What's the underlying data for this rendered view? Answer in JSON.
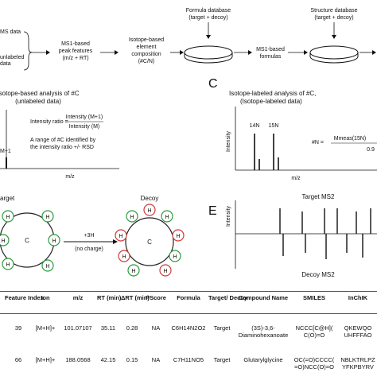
{
  "panelA": {
    "input_top": "MS data",
    "input_bottom": "unlabeled",
    "input_bottom2": "data",
    "step1": [
      "MS1-based",
      "peak features",
      "(m/z + RT)"
    ],
    "step2": [
      "Isotope-based",
      "element",
      "composition",
      "(#C/N)"
    ],
    "formula_db": [
      "Formula database",
      "(target + decoy)"
    ],
    "step3": [
      "MS1-based",
      "formulas"
    ],
    "structure_db": [
      "Structure database",
      "(target + decoy)"
    ]
  },
  "panelB": {
    "title": "Isotope-based analysis of #C",
    "subtitle": "(unlabeled data)",
    "ratio_lhs": "Intensity ratio =",
    "ratio_num": "Intensity (M+1)",
    "ratio_den": "Intensity (M)",
    "peak_label": "M+1",
    "note1": "A range of #C identified by",
    "note2": "the intensity ratio +/- RSD",
    "xlabel": "m/z"
  },
  "panelC": {
    "letter": "C",
    "title": "Isotope-labeled analysis of #C,",
    "subtitle": "(Isotope-labeled data)",
    "ylabel": "Intensity",
    "xlabel": "m/z",
    "peak1": "14N",
    "peak2": "15N",
    "formula_lhs": "#N =",
    "formula_num": "Mmeas(15N)",
    "formula_den": "0.9"
  },
  "panelD": {
    "target_label": "arget",
    "decoy_label": "Decoy",
    "arrow_top": "+3H",
    "arrow_bottom": "(no charge)",
    "center_atom": "C",
    "atom_H": "H"
  },
  "panelE": {
    "letter": "E",
    "target_label": "Target MS2",
    "decoy_label": "Decoy MS2",
    "ylabel": "Intensity"
  },
  "table": {
    "headers": [
      "Feature Index",
      "Ion",
      "m/z",
      "RT (min)",
      "ΔRT (min)",
      "PScore",
      "Formula",
      "Target/ Decoy",
      "Compound Name",
      "SMILES",
      "InChIK"
    ],
    "rows": [
      [
        "39",
        "[M+H]+",
        "101.07107",
        "35.11",
        "0.28",
        "NA",
        "C6H14N2O2",
        "Target",
        "(3S)-3,6- Diaminohexanoate",
        "NCCC[C@H]( C(O)=O",
        "QKEWQO UHFFFAO"
      ],
      [
        "66",
        "[M+H]+",
        "188.0568",
        "42.15",
        "0.15",
        "NA",
        "C7H11NO5",
        "Target",
        "Glutarylglycine",
        "OC(=O)CCCC( =O)NCC(O)=O",
        "NBLKTRLPZ YFKPBYRV"
      ]
    ]
  }
}
